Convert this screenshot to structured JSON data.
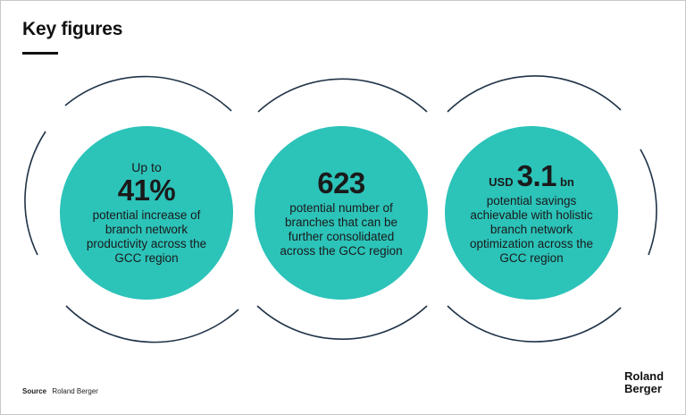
{
  "title": "Key figures",
  "colors": {
    "accent": "#2cc3b9",
    "ring": "#1f3347",
    "text": "#1a1a1a"
  },
  "figures": [
    {
      "prefix": "Up to",
      "value": "41%",
      "description_lines": [
        "potential increase of",
        "branch network",
        "productivity across the",
        "GCC region"
      ]
    },
    {
      "value": "623",
      "description_lines": [
        "potential number of",
        "branches that can be",
        "further consolidated",
        "across the GCC region"
      ]
    },
    {
      "value_prefix": "USD",
      "value": "3.1",
      "value_suffix": "bn",
      "description_lines": [
        "potential savings",
        "achievable with holistic",
        "branch network",
        "optimization across the",
        "GCC region"
      ]
    }
  ],
  "source": {
    "label": "Source",
    "text": "Roland Berger"
  },
  "logo": {
    "line1": "Roland",
    "line2": "Berger"
  }
}
